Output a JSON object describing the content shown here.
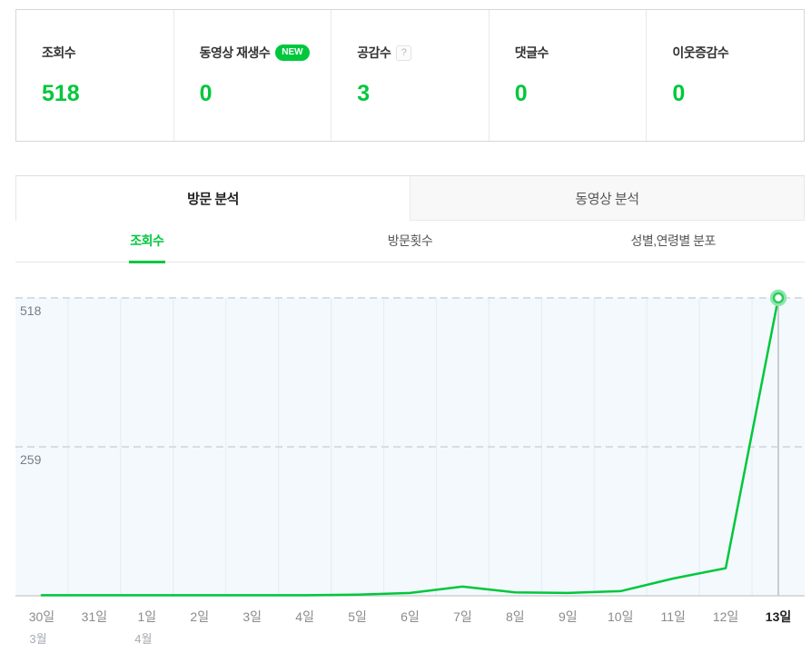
{
  "colors": {
    "accent": "#00c73c",
    "chart_bg": "#f3f9fd",
    "grid": "#e3edf4",
    "dashed": "#d7dde3",
    "axis": "#d0d0d0",
    "selected_line": "#c9cdd1"
  },
  "stats": {
    "items": [
      {
        "label": "조회수",
        "value": "518"
      },
      {
        "label": "동영상 재생수",
        "value": "0",
        "badge": "NEW"
      },
      {
        "label": "공감수",
        "value": "3",
        "help": "?"
      },
      {
        "label": "댓글수",
        "value": "0"
      },
      {
        "label": "이웃증감수",
        "value": "0"
      }
    ]
  },
  "tabs": {
    "visit": "방문 분석",
    "video": "동영상 분석"
  },
  "subtabs": {
    "views": "조회수",
    "visits": "방문횟수",
    "demographics": "성별,연령별 분포"
  },
  "chart_data": {
    "type": "line",
    "categories": [
      "30일",
      "31일",
      "1일",
      "2일",
      "3일",
      "4일",
      "5일",
      "6일",
      "7일",
      "8일",
      "9일",
      "10일",
      "11일",
      "12일",
      "13일"
    ],
    "month_markers": [
      {
        "category_index": 0,
        "label": "3월"
      },
      {
        "category_index": 2,
        "label": "4월"
      }
    ],
    "values": [
      1,
      1,
      1,
      1,
      1,
      1,
      2,
      5,
      16,
      6,
      5,
      8,
      30,
      48,
      518
    ],
    "yticks": [
      259,
      518
    ],
    "ylim": [
      0,
      518
    ],
    "selected_index": 14,
    "line_color": "#00c73c",
    "grid": "vertical-day-bands-with-dashed-yticks",
    "legend": "none"
  }
}
